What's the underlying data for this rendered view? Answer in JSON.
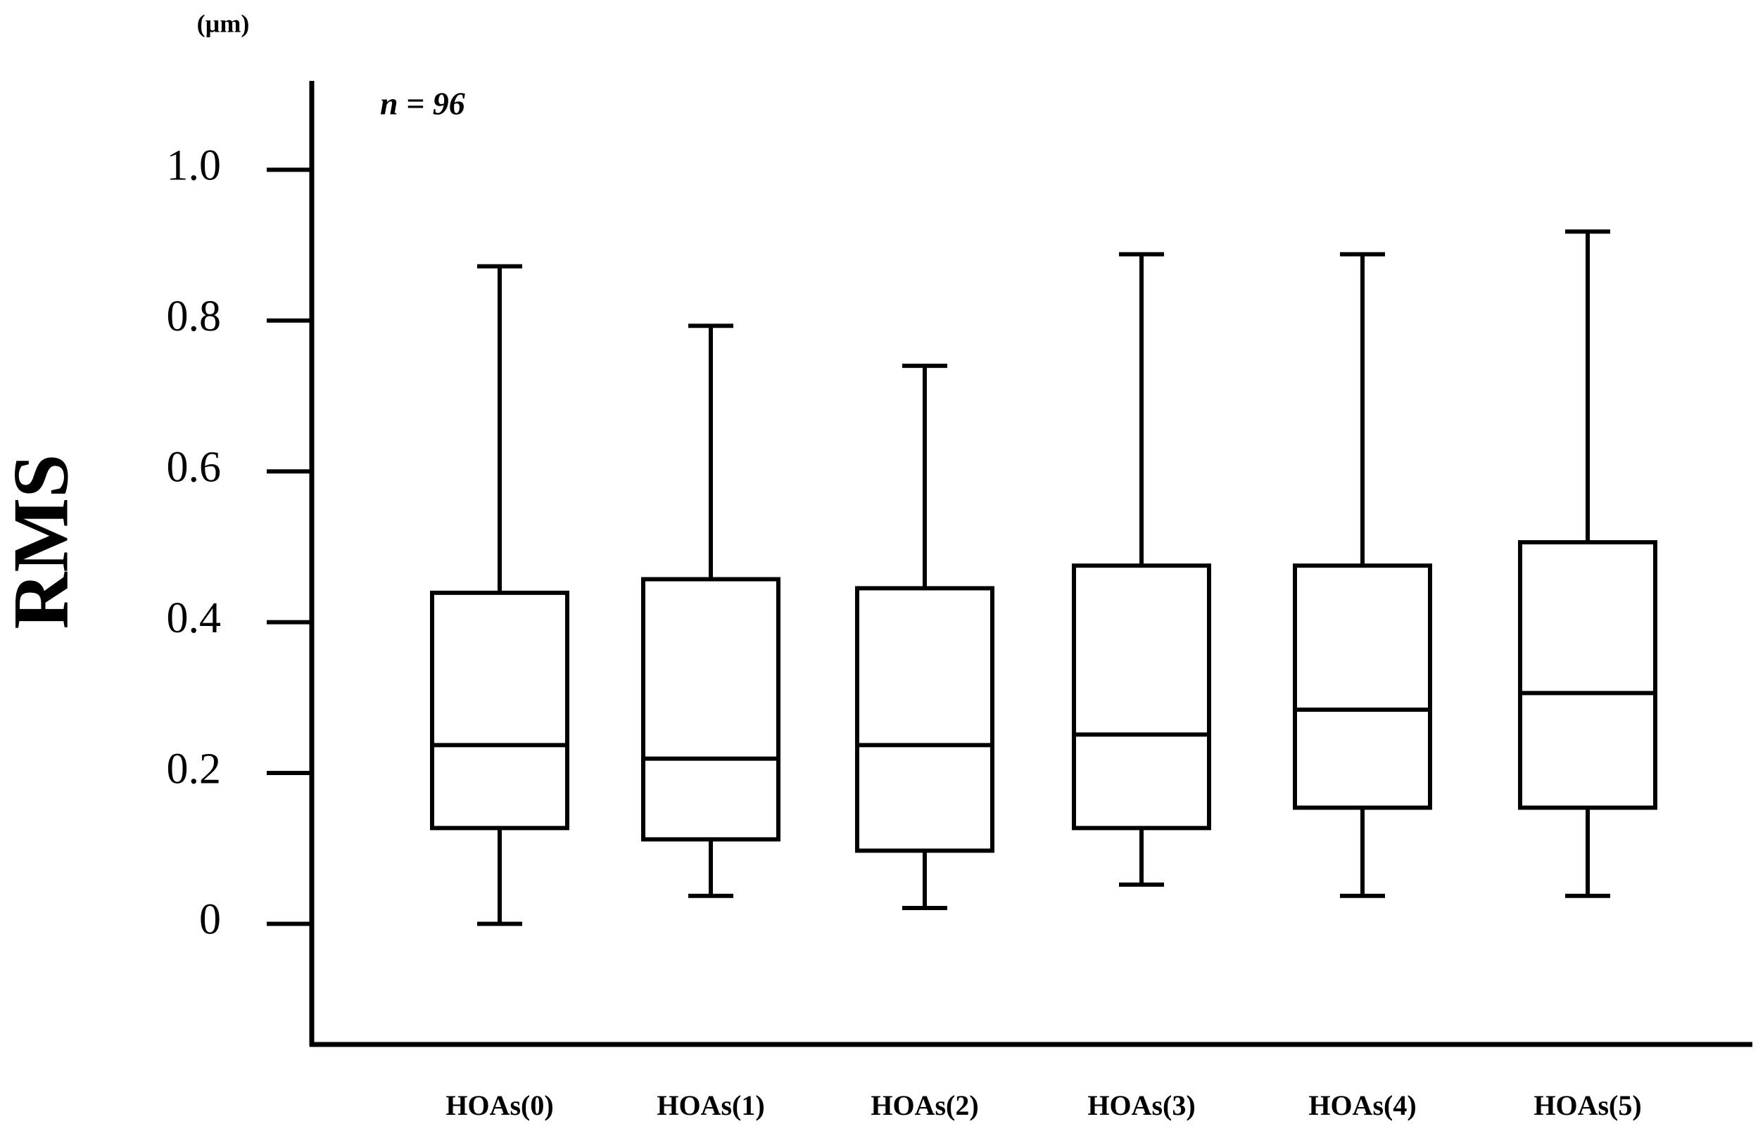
{
  "chart_data": {
    "type": "box",
    "unit_label": "(µm)",
    "annotation": "n = 96",
    "y_label": "RMS",
    "categories": [
      "HOAs(0)",
      "HOAs(1)",
      "HOAs(2)",
      "HOAs(3)",
      "HOAs(4)",
      "HOAs(5)"
    ],
    "min": [
      0,
      0.037,
      0.021,
      0.052,
      0.037,
      0.037
    ],
    "q1": [
      0.127,
      0.112,
      0.097,
      0.127,
      0.154,
      0.154
    ],
    "median": [
      0.237,
      0.219,
      0.237,
      0.251,
      0.284,
      0.306
    ],
    "q3": [
      0.439,
      0.457,
      0.445,
      0.475,
      0.475,
      0.506
    ],
    "max": [
      0.872,
      0.793,
      0.74,
      0.888,
      0.888,
      0.918
    ],
    "color": "#000000",
    "ylim": [
      -0.16,
      1.116
    ],
    "yticks": [
      0,
      0.2,
      0.4,
      0.6,
      0.8,
      {
        "value": 1,
        "label": "1.0"
      }
    ]
  }
}
